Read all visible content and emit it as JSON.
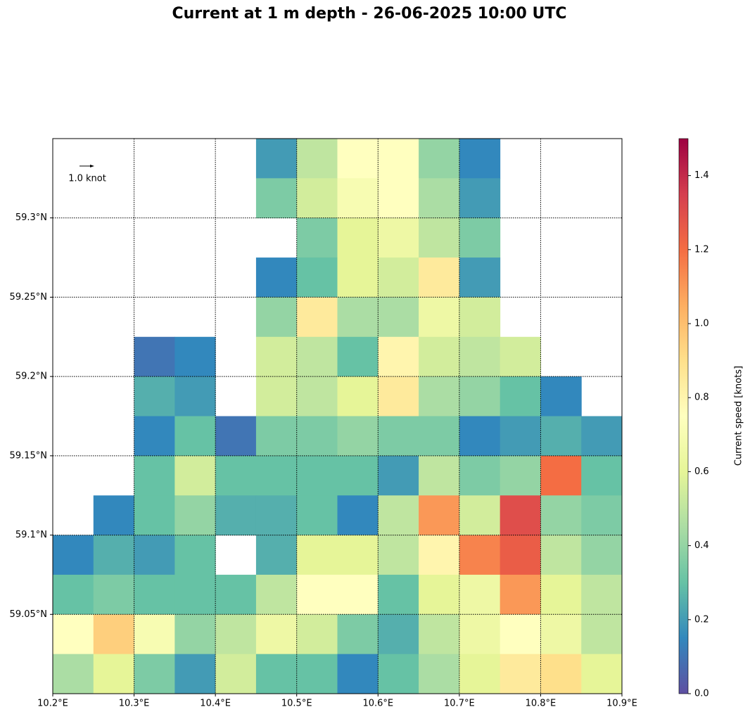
{
  "chart_data": {
    "type": "heatmap",
    "title": "Current at 1 m depth - 26-06-2025 10:00 UTC",
    "scale_label": "1.0 knot",
    "colorbar_label": "Current speed [knots]",
    "xlim": [
      10.2,
      10.9
    ],
    "ylim": [
      59.0,
      59.35
    ],
    "xticks": [
      {
        "value": 10.2,
        "label": "10.2°E"
      },
      {
        "value": 10.3,
        "label": "10.3°E"
      },
      {
        "value": 10.4,
        "label": "10.4°E"
      },
      {
        "value": 10.5,
        "label": "10.5°E"
      },
      {
        "value": 10.6,
        "label": "10.6°E"
      },
      {
        "value": 10.7,
        "label": "10.7°E"
      },
      {
        "value": 10.8,
        "label": "10.8°E"
      },
      {
        "value": 10.9,
        "label": "10.9°E"
      }
    ],
    "yticks": [
      {
        "value": 59.05,
        "label": "59.05°N"
      },
      {
        "value": 59.1,
        "label": "59.1°N"
      },
      {
        "value": 59.15,
        "label": "59.15°N"
      },
      {
        "value": 59.2,
        "label": "59.2°N"
      },
      {
        "value": 59.25,
        "label": "59.25°N"
      },
      {
        "value": 59.3,
        "label": "59.3°N"
      }
    ],
    "grid": true,
    "clim": [
      0,
      1.5
    ],
    "cticks": [
      {
        "value": 0,
        "label": "0.0"
      },
      0.2,
      0.4,
      0.6,
      0.8,
      {
        "value": 1,
        "label": "1.0"
      },
      1.2,
      1.4
    ],
    "colormap": [
      "#5e4fa2",
      "#3288bd",
      "#66c2a5",
      "#abdda4",
      "#e6f598",
      "#ffffbf",
      "#fee08b",
      "#fdae61",
      "#f46d43",
      "#d53e4f",
      "#9e0142"
    ],
    "x": [
      10.225,
      10.275,
      10.325,
      10.375,
      10.425,
      10.475,
      10.525,
      10.575,
      10.625,
      10.675,
      10.725,
      10.775,
      10.825,
      10.875
    ],
    "y": [
      59.3375,
      59.3125,
      59.2875,
      59.2625,
      59.2375,
      59.2125,
      59.1875,
      59.1625,
      59.1375,
      59.1125,
      59.0875,
      59.0625,
      59.0375,
      59.0125
    ],
    "values": [
      [
        null,
        null,
        null,
        null,
        null,
        0.2,
        0.5,
        0.75,
        0.75,
        0.4,
        0.15,
        null,
        null,
        null
      ],
      [
        null,
        null,
        null,
        null,
        null,
        0.35,
        0.55,
        0.7,
        0.75,
        0.45,
        0.2,
        null,
        null,
        null
      ],
      [
        null,
        null,
        null,
        null,
        null,
        null,
        0.35,
        0.6,
        0.65,
        0.5,
        0.35,
        null,
        null,
        null
      ],
      [
        null,
        null,
        null,
        null,
        null,
        0.15,
        0.3,
        0.6,
        0.55,
        0.85,
        0.2,
        null,
        null,
        null
      ],
      [
        null,
        null,
        null,
        null,
        null,
        0.4,
        0.85,
        0.45,
        0.45,
        0.65,
        0.55,
        null,
        null,
        null
      ],
      [
        null,
        null,
        0.1,
        0.15,
        null,
        0.55,
        0.5,
        0.3,
        0.8,
        0.55,
        0.5,
        0.55,
        null,
        null
      ],
      [
        null,
        null,
        0.25,
        0.2,
        null,
        0.55,
        0.5,
        0.6,
        0.85,
        0.45,
        0.4,
        0.3,
        0.15,
        null
      ],
      [
        null,
        null,
        0.15,
        0.3,
        0.1,
        0.35,
        0.35,
        0.4,
        0.35,
        0.35,
        0.15,
        0.2,
        0.25,
        0.2
      ],
      [
        null,
        null,
        0.3,
        0.55,
        0.3,
        0.3,
        0.3,
        0.3,
        0.2,
        0.5,
        0.35,
        0.4,
        1.2,
        0.3
      ],
      [
        null,
        0.15,
        0.3,
        0.4,
        0.25,
        0.25,
        0.3,
        0.15,
        0.5,
        1.1,
        0.55,
        1.3,
        0.4,
        0.35
      ],
      [
        0.15,
        0.25,
        0.2,
        0.3,
        null,
        0.25,
        0.6,
        0.6,
        0.5,
        0.8,
        1.15,
        1.25,
        0.5,
        0.4
      ],
      [
        0.3,
        0.35,
        0.3,
        0.3,
        0.3,
        0.5,
        0.75,
        0.75,
        0.3,
        0.6,
        0.65,
        1.1,
        0.6,
        0.5
      ],
      [
        0.75,
        0.95,
        0.7,
        0.4,
        0.5,
        0.65,
        0.55,
        0.35,
        0.25,
        0.5,
        0.65,
        0.75,
        0.65,
        0.5
      ],
      [
        0.45,
        0.6,
        0.35,
        0.2,
        0.55,
        0.3,
        0.3,
        0.15,
        0.3,
        0.45,
        0.6,
        0.85,
        0.9,
        0.6
      ]
    ]
  }
}
